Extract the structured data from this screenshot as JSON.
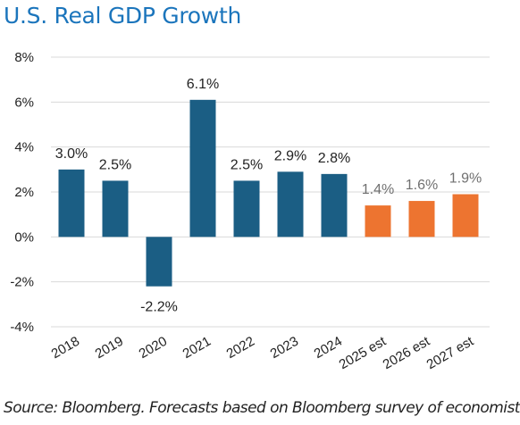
{
  "title": "U.S. Real GDP Growth",
  "source": "Source: Bloomberg. Forecasts based on Bloomberg survey of economists.",
  "colors": {
    "title": "#1b75bc",
    "actual": "#1b5e84",
    "estimate": "#ed7430",
    "grid": "#d9d9d9",
    "text": "#222222",
    "estimate_label": "#707070"
  },
  "chart_data": {
    "type": "bar",
    "title": "U.S. Real GDP Growth",
    "xlabel": "",
    "ylabel": "",
    "ylim": [
      -4,
      8
    ],
    "yticks": [
      8,
      6,
      4,
      2,
      0,
      -2,
      -4
    ],
    "ytick_labels": [
      "8%",
      "6%",
      "4%",
      "2%",
      "0%",
      "-2%",
      "-4%"
    ],
    "grid": true,
    "categories": [
      "2018",
      "2019",
      "2020",
      "2021",
      "2022",
      "2023",
      "2024",
      "2025 est",
      "2026 est",
      "2027 est"
    ],
    "values": [
      3.0,
      2.5,
      -2.2,
      6.1,
      2.5,
      2.9,
      2.8,
      1.4,
      1.6,
      1.9
    ],
    "data_labels": [
      "3.0%",
      "2.5%",
      "-2.2%",
      "6.1%",
      "2.5%",
      "2.9%",
      "2.8%",
      "1.4%",
      "1.6%",
      "1.9%"
    ],
    "estimate": [
      false,
      false,
      false,
      false,
      false,
      false,
      false,
      true,
      true,
      true
    ]
  }
}
